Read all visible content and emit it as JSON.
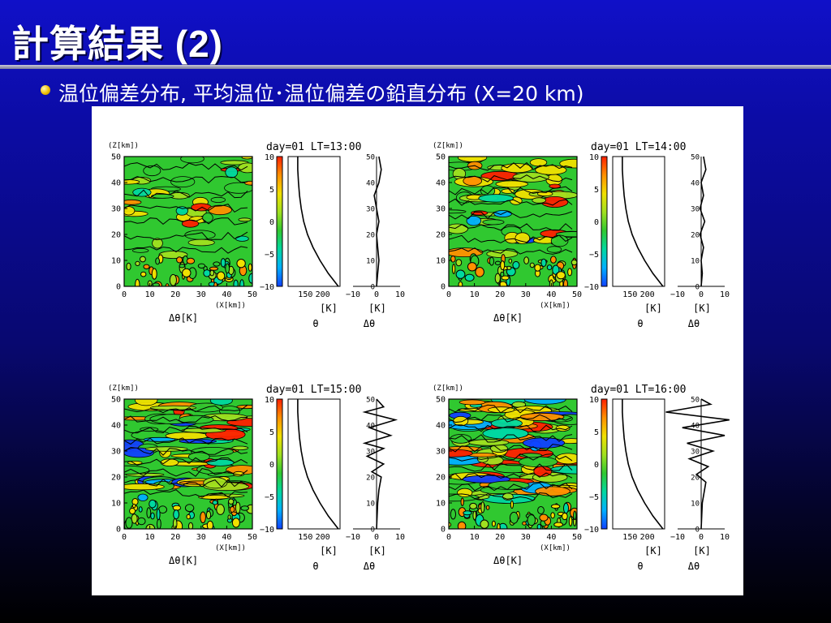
{
  "slide": {
    "title": "計算結果 (2)",
    "bullet": "温位偏差分布, 平均温位･温位偏差の鉛直分布 (X=20 km)"
  },
  "colors": {
    "background_top": "#1010c8",
    "background_bottom": "#000000",
    "title_text": "#ffffff",
    "bullet_icon": "#f0c000",
    "figure_panel": "#ffffff",
    "colorbar": [
      "#1040ff",
      "#00b0ff",
      "#00d8a0",
      "#30c830",
      "#a0e020",
      "#f0e000",
      "#ff9000",
      "#ff2000"
    ]
  },
  "icons": {
    "bullet": "bullet-dot-icon"
  },
  "chart_data": [
    {
      "type": "heatmap",
      "title": "day=01  LT=13:00",
      "main_plot": {
        "xlabel": "(X[km])",
        "ylabel": "(Z[km])",
        "colorlabel": "Δθ[K]",
        "xlim": [
          0,
          50
        ],
        "ylim": [
          0,
          50
        ],
        "xticks": [
          "0",
          "10",
          "20",
          "30",
          "40",
          "50"
        ],
        "yticks": [
          "0",
          "10",
          "20",
          "30",
          "40",
          "50"
        ],
        "activity": 0.25
      },
      "colorbar": {
        "ticks": [
          "10",
          "5",
          "0",
          "−5",
          "−10"
        ],
        "range": [
          -10,
          10
        ]
      },
      "theta_profile": {
        "xlabel": "[K]",
        "name": "θ",
        "xticks": [
          "150",
          "200"
        ],
        "xlim": [
          100,
          250
        ],
        "z": [
          0,
          5,
          10,
          15,
          20,
          25,
          30,
          35,
          40,
          45,
          50
        ],
        "values": [
          245,
          216,
          192,
          172,
          156,
          145,
          138,
          133,
          130,
          128,
          128
        ]
      },
      "dtheta_profile": {
        "xlabel": "[K]",
        "name": "Δθ",
        "xticks": [
          "−10",
          "0",
          "10"
        ],
        "yticks": [
          "0",
          "10",
          "20",
          "30",
          "40",
          "50"
        ],
        "xlim": [
          -10,
          10
        ],
        "z": [
          0,
          5,
          10,
          15,
          20,
          25,
          30,
          35,
          40,
          45,
          50
        ],
        "values": [
          0,
          0.5,
          1,
          0.5,
          0,
          1,
          0,
          -1,
          1,
          2,
          1
        ]
      }
    },
    {
      "type": "heatmap",
      "title": "day=01  LT=14:00",
      "main_plot": {
        "xlabel": "(X[km])",
        "ylabel": "(Z[km])",
        "colorlabel": "Δθ[K]",
        "xlim": [
          0,
          50
        ],
        "ylim": [
          0,
          50
        ],
        "xticks": [
          "0",
          "10",
          "20",
          "30",
          "40",
          "50"
        ],
        "yticks": [
          "0",
          "10",
          "20",
          "30",
          "40",
          "50"
        ],
        "activity": 0.5
      },
      "colorbar": {
        "ticks": [
          "10",
          "5",
          "0",
          "−5",
          "−10"
        ],
        "range": [
          -10,
          10
        ]
      },
      "theta_profile": {
        "xlabel": "[K]",
        "name": "θ",
        "xticks": [
          "150",
          "200"
        ],
        "xlim": [
          100,
          250
        ],
        "z": [
          0,
          5,
          10,
          15,
          20,
          25,
          30,
          35,
          40,
          45,
          50
        ],
        "values": [
          245,
          216,
          192,
          172,
          156,
          145,
          138,
          133,
          130,
          128,
          128
        ]
      },
      "dtheta_profile": {
        "xlabel": "[K]",
        "name": "Δθ",
        "xticks": [
          "−10",
          "0",
          "10"
        ],
        "yticks": [
          "0",
          "10",
          "20",
          "30",
          "40",
          "50"
        ],
        "xlim": [
          -10,
          10
        ],
        "z": [
          0,
          5,
          10,
          15,
          20,
          25,
          30,
          35,
          40,
          45,
          50
        ],
        "values": [
          0,
          0.5,
          0,
          1,
          -0.5,
          1.5,
          -0.5,
          1,
          0,
          2,
          1
        ]
      }
    },
    {
      "type": "heatmap",
      "title": "day=01  LT=15:00",
      "main_plot": {
        "xlabel": "(X[km])",
        "ylabel": "(Z[km])",
        "colorlabel": "Δθ[K]",
        "xlim": [
          0,
          50
        ],
        "ylim": [
          0,
          50
        ],
        "xticks": [
          "0",
          "10",
          "20",
          "30",
          "40",
          "50"
        ],
        "yticks": [
          "0",
          "10",
          "20",
          "30",
          "40",
          "50"
        ],
        "activity": 0.8
      },
      "colorbar": {
        "ticks": [
          "10",
          "5",
          "0",
          "−5",
          "−10"
        ],
        "range": [
          -10,
          10
        ]
      },
      "theta_profile": {
        "xlabel": "[K]",
        "name": "θ",
        "xticks": [
          "150",
          "200"
        ],
        "xlim": [
          100,
          250
        ],
        "z": [
          0,
          5,
          10,
          15,
          20,
          25,
          30,
          35,
          40,
          45,
          50
        ],
        "values": [
          245,
          216,
          192,
          172,
          156,
          145,
          138,
          133,
          130,
          128,
          128
        ]
      },
      "dtheta_profile": {
        "xlabel": "[K]",
        "name": "Δθ",
        "xticks": [
          "−10",
          "0",
          "10"
        ],
        "yticks": [
          "0",
          "10",
          "20",
          "30",
          "40",
          "50"
        ],
        "xlim": [
          -10,
          10
        ],
        "z": [
          0,
          10,
          15,
          20,
          22,
          25,
          28,
          31,
          33,
          36,
          39,
          42,
          45,
          47,
          50
        ],
        "values": [
          0,
          0.5,
          1,
          2,
          -2,
          3,
          -4,
          3,
          -5,
          6,
          -3,
          8,
          -5,
          3,
          0
        ]
      }
    },
    {
      "type": "heatmap",
      "title": "day=01  LT=16:00",
      "main_plot": {
        "xlabel": "(X[km])",
        "ylabel": "(Z[km])",
        "colorlabel": "Δθ[K]",
        "xlim": [
          0,
          50
        ],
        "ylim": [
          0,
          50
        ],
        "xticks": [
          "0",
          "10",
          "20",
          "30",
          "40",
          "50"
        ],
        "yticks": [
          "0",
          "10",
          "20",
          "30",
          "40",
          "50"
        ],
        "activity": 1.0
      },
      "colorbar": {
        "ticks": [
          "10",
          "5",
          "0",
          "−5",
          "−10"
        ],
        "range": [
          -10,
          10
        ]
      },
      "theta_profile": {
        "xlabel": "[K]",
        "name": "θ",
        "xticks": [
          "150",
          "200"
        ],
        "xlim": [
          100,
          250
        ],
        "z": [
          0,
          5,
          10,
          15,
          20,
          25,
          30,
          35,
          40,
          45,
          50
        ],
        "values": [
          245,
          216,
          192,
          172,
          156,
          145,
          138,
          133,
          130,
          128,
          128
        ]
      },
      "dtheta_profile": {
        "xlabel": "[K]",
        "name": "Δθ",
        "xticks": [
          "−10",
          "0",
          "10"
        ],
        "yticks": [
          "0",
          "10",
          "20",
          "30",
          "40",
          "50"
        ],
        "xlim": [
          -10,
          10
        ],
        "z": [
          0,
          10,
          18,
          21,
          24,
          27,
          30,
          33,
          36,
          39,
          42,
          45,
          48,
          50
        ],
        "values": [
          0,
          0.5,
          2,
          -2,
          3,
          -5,
          5,
          -6,
          10,
          -8,
          12,
          -15,
          4,
          0
        ]
      }
    }
  ]
}
